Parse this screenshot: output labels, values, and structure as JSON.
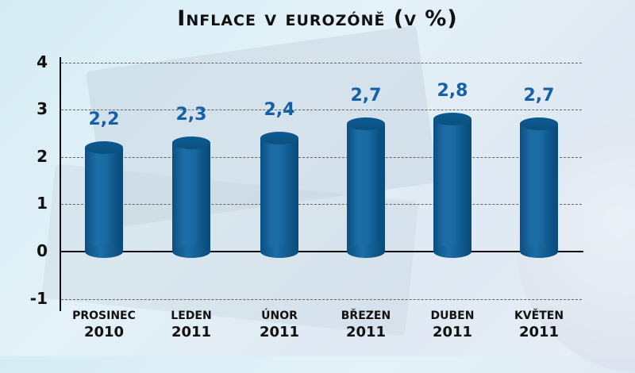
{
  "chart_data": {
    "type": "bar",
    "title": "Inflace v eurozóně (v %)",
    "xlabel": "",
    "ylabel": "",
    "ylim": [
      -1,
      4
    ],
    "yticks": [
      "4",
      "3",
      "2",
      "1",
      "0",
      "-1"
    ],
    "grid": true,
    "categories": [
      {
        "month": "PROSINEC",
        "year": "2010"
      },
      {
        "month": "LEDEN",
        "year": "2011"
      },
      {
        "month": "ÚNOR",
        "year": "2011"
      },
      {
        "month": "BŘEZEN",
        "year": "2011"
      },
      {
        "month": "DUBEN",
        "year": "2011"
      },
      {
        "month": "KVĚTEN",
        "year": "2011"
      }
    ],
    "values": [
      2.2,
      2.3,
      2.4,
      2.7,
      2.8,
      2.7
    ],
    "value_labels": [
      "2,2",
      "2,3",
      "2,4",
      "2,7",
      "2,8",
      "2,7"
    ],
    "bar_color": "#1560a8",
    "label_color": "#1560a8"
  }
}
